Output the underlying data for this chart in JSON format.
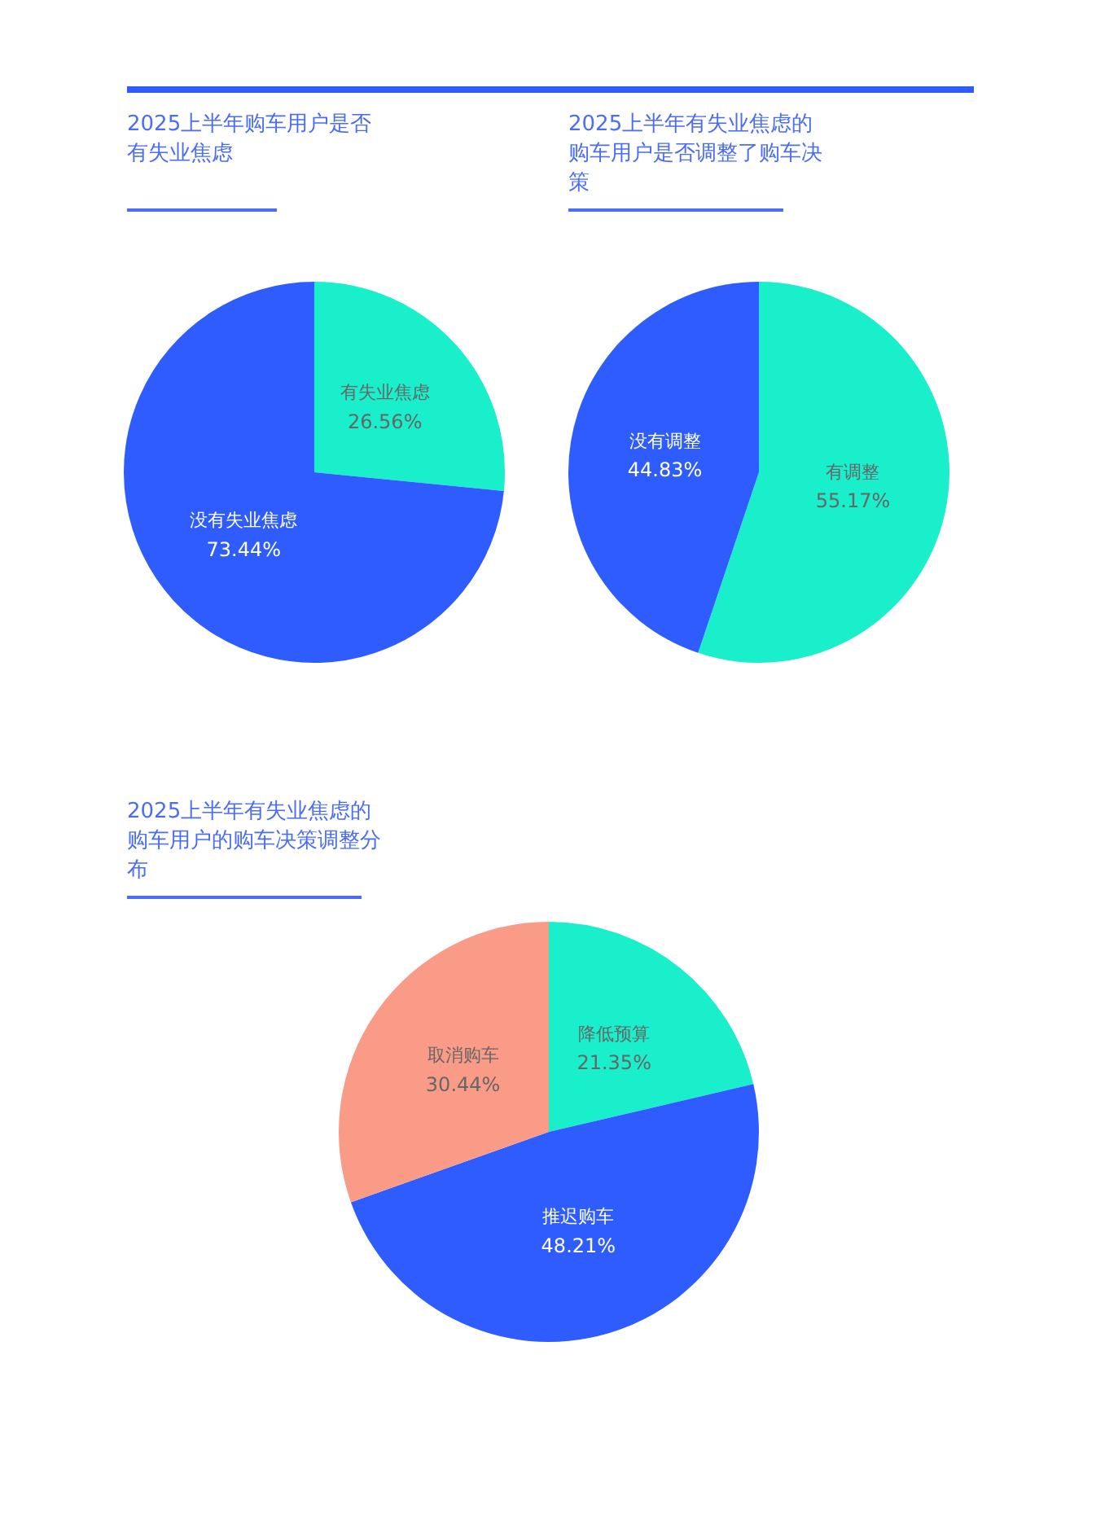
{
  "chart_data": [
    {
      "type": "pie",
      "title": "2025上半年购车用户是否有失业焦虑",
      "categories": [
        "有失业焦虑",
        "没有失业焦虑"
      ],
      "values": [
        26.56,
        73.44
      ],
      "colors": [
        "#19efcb",
        "#2f5cff"
      ],
      "value_labels": [
        "26.56%",
        "73.44%"
      ]
    },
    {
      "type": "pie",
      "title": "2025上半年有失业焦虑的购车用户是否调整了购车决策",
      "categories": [
        "有调整",
        "没有调整"
      ],
      "values": [
        55.17,
        44.83
      ],
      "colors": [
        "#19efcb",
        "#2f5cff"
      ],
      "value_labels": [
        "55.17%",
        "44.83%"
      ]
    },
    {
      "type": "pie",
      "title": "2025上半年有失业焦虑的购车用户的购车决策调整分布",
      "categories": [
        "降低预算",
        "推迟购车",
        "取消购车"
      ],
      "values": [
        21.35,
        48.21,
        30.44
      ],
      "colors": [
        "#19efcb",
        "#2f5cff",
        "#f99b87"
      ],
      "value_labels": [
        "21.35%",
        "48.21%",
        "30.44%"
      ]
    }
  ]
}
